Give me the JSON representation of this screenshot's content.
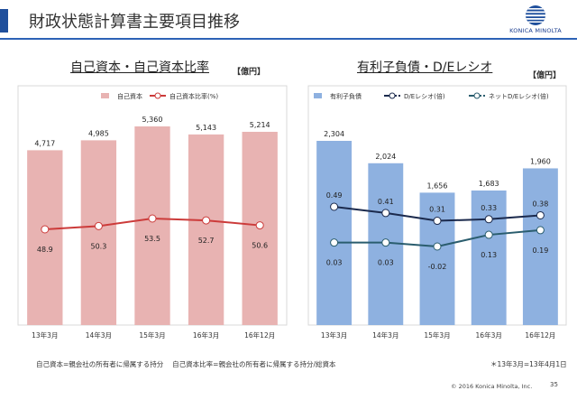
{
  "page": {
    "title": "財政状態計算書主要項目推移",
    "logo_text": "KONICA MINOLTA",
    "copyright": "© 2016 Konica Minolta, Inc.",
    "page_number": "35",
    "footnote_left": "自己資本=親会社の所有者に帰属する持分　 自己資本比率=親会社の所有者に帰属する持分/総資本",
    "footnote_right": "＊13年3月=13年4月1日"
  },
  "colors": {
    "accent": "#1f4f9c",
    "equity_bar": "#e8b3b2",
    "equity_line": "#cc3b3a",
    "debt_bar": "#8eb1e0",
    "de_line": "#1b2a4d",
    "net_de_line": "#2a5d6e"
  },
  "chart_data": [
    {
      "type": "bar",
      "title": "自己資本・自己資本比率",
      "unit": "【億円】",
      "categories": [
        "13年3月",
        "14年3月",
        "15年3月",
        "16年3月",
        "16年12月"
      ],
      "series": [
        {
          "name": "自己資本",
          "kind": "bar",
          "values": [
            4717,
            4985,
            5360,
            5143,
            5214
          ],
          "labels": [
            "4,717",
            "4,985",
            "5,360",
            "5,143",
            "5,214"
          ]
        },
        {
          "name": "自己資本比率(%)",
          "kind": "line",
          "values": [
            48.9,
            50.3,
            53.5,
            52.7,
            50.6
          ],
          "labels": [
            "48.9",
            "50.3",
            "53.5",
            "52.7",
            "50.6"
          ]
        }
      ],
      "legend": "top",
      "grid": false
    },
    {
      "type": "bar",
      "title": "有利子負債・D/Eレシオ",
      "unit": "【億円】",
      "categories": [
        "13年3月",
        "14年3月",
        "15年3月",
        "16年3月",
        "16年12月"
      ],
      "series": [
        {
          "name": "有利子負債",
          "kind": "bar",
          "values": [
            2304,
            2024,
            1656,
            1683,
            1960
          ],
          "labels": [
            "2,304",
            "2,024",
            "1,656",
            "1,683",
            "1,960"
          ]
        },
        {
          "name": "D/Eレシオ(倍)",
          "kind": "line",
          "values": [
            0.49,
            0.41,
            0.31,
            0.33,
            0.38
          ],
          "labels": [
            "0.49",
            "0.41",
            "0.31",
            "0.33",
            "0.38"
          ]
        },
        {
          "name": "ネットD/Eレシオ(倍)",
          "kind": "line",
          "values": [
            0.03,
            0.03,
            -0.02,
            0.13,
            0.19
          ],
          "labels": [
            "0.03",
            "0.03",
            "-0.02",
            "0.13",
            "0.19"
          ]
        }
      ],
      "legend": "top",
      "grid": false
    }
  ]
}
